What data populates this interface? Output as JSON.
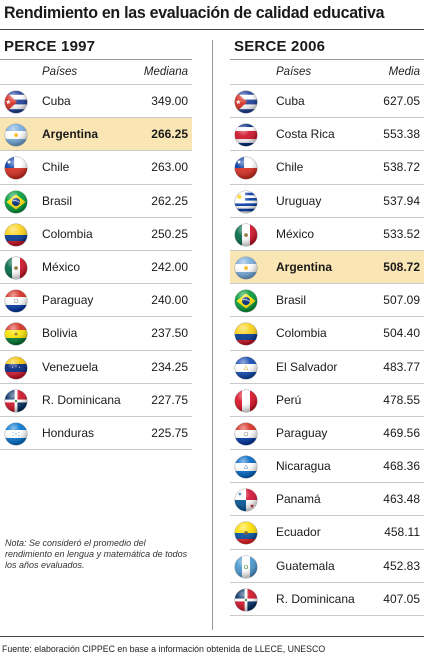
{
  "title": "Rendimiento en las evaluación de calidad educativa",
  "left_panel": {
    "title": "PERCE 1997",
    "col_country": "Países",
    "col_value": "Mediana"
  },
  "right_panel": {
    "title": "SERCE 2006",
    "col_country": "Países",
    "col_value": "Media"
  },
  "note": "Nota: Se consideró el promedio del rendimiento en lengua y matemática de todos los años evaluados.",
  "source": "Fuente: elaboración CIPPEC en base a información obtenida de LLECE, UNESCO",
  "colors": {
    "highlight": "#fae6b4"
  },
  "chart_data": [
    {
      "type": "table",
      "title": "PERCE 1997",
      "columns": [
        "Países",
        "Mediana"
      ],
      "highlight": "Argentina",
      "rows": [
        {
          "country": "Cuba",
          "value": "349.00",
          "flag": "cuba-flag"
        },
        {
          "country": "Argentina",
          "value": "266.25",
          "flag": "argentina-flag"
        },
        {
          "country": "Chile",
          "value": "263.00",
          "flag": "chile-flag"
        },
        {
          "country": "Brasil",
          "value": "262.25",
          "flag": "brasil-flag"
        },
        {
          "country": "Colombia",
          "value": "250.25",
          "flag": "colombia-flag"
        },
        {
          "country": "México",
          "value": "242.00",
          "flag": "mexico-flag"
        },
        {
          "country": "Paraguay",
          "value": "240.00",
          "flag": "paraguay-flag"
        },
        {
          "country": "Bolivia",
          "value": "237.50",
          "flag": "bolivia-flag"
        },
        {
          "country": "Venezuela",
          "value": "234.25",
          "flag": "venezuela-flag"
        },
        {
          "country": "R. Dominicana",
          "value": "227.75",
          "flag": "dominicana-flag"
        },
        {
          "country": "Honduras",
          "value": "225.75",
          "flag": "honduras-flag"
        }
      ]
    },
    {
      "type": "table",
      "title": "SERCE 2006",
      "columns": [
        "Países",
        "Media"
      ],
      "highlight": "Argentina",
      "rows": [
        {
          "country": "Cuba",
          "value": "627.05",
          "flag": "cuba-flag"
        },
        {
          "country": "Costa Rica",
          "value": "553.38",
          "flag": "costa-rica-flag"
        },
        {
          "country": "Chile",
          "value": "538.72",
          "flag": "chile-flag"
        },
        {
          "country": "Uruguay",
          "value": "537.94",
          "flag": "uruguay-flag"
        },
        {
          "country": "México",
          "value": "533.52",
          "flag": "mexico-flag"
        },
        {
          "country": "Argentina",
          "value": "508.72",
          "flag": "argentina-flag"
        },
        {
          "country": "Brasil",
          "value": "507.09",
          "flag": "brasil-flag"
        },
        {
          "country": "Colombia",
          "value": "504.40",
          "flag": "colombia-flag"
        },
        {
          "country": "El Salvador",
          "value": "483.77",
          "flag": "el-salvador-flag"
        },
        {
          "country": "Perú",
          "value": "478.55",
          "flag": "peru-flag"
        },
        {
          "country": "Paraguay",
          "value": "469.56",
          "flag": "paraguay-flag"
        },
        {
          "country": "Nicaragua",
          "value": "468.36",
          "flag": "nicaragua-flag"
        },
        {
          "country": "Panamá",
          "value": "463.48",
          "flag": "panama-flag"
        },
        {
          "country": "Ecuador",
          "value": "458.11",
          "flag": "ecuador-flag"
        },
        {
          "country": "Guatemala",
          "value": "452.83",
          "flag": "guatemala-flag"
        },
        {
          "country": "R. Dominicana",
          "value": "407.05",
          "flag": "dominicana-flag"
        }
      ]
    }
  ]
}
